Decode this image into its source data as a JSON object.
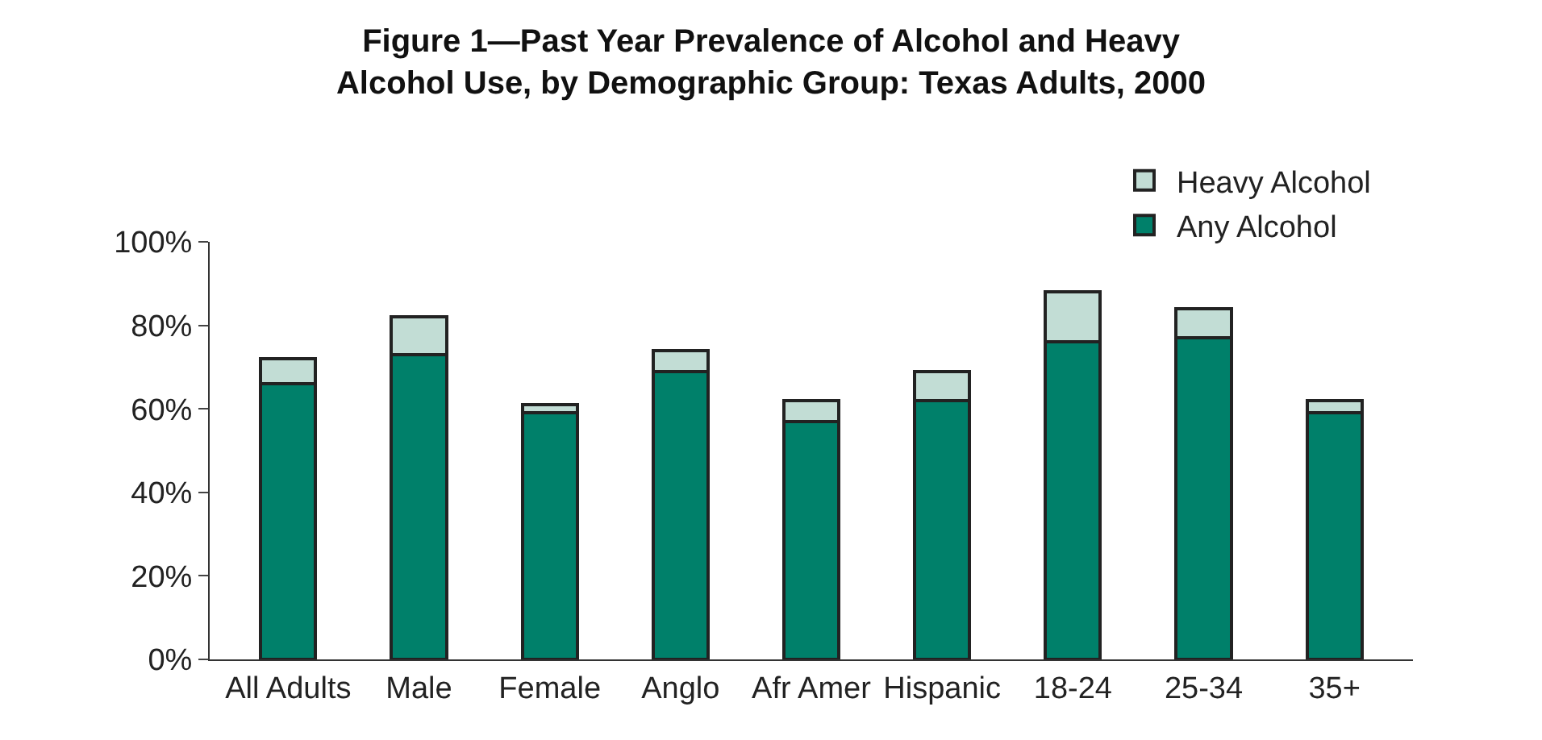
{
  "chart_data": {
    "type": "bar",
    "title": "Figure 1—Past Year Prevalence of Alcohol and Heavy\nAlcohol Use, by Demographic Group: Texas Adults, 2000",
    "categories": [
      "All Adults",
      "Male",
      "Female",
      "Anglo",
      "Afr Amer",
      "Hispanic",
      "18-24",
      "25-34",
      "35+"
    ],
    "series": [
      {
        "name": "Any Alcohol",
        "color": "#00806a",
        "values": [
          66,
          73,
          59,
          69,
          57,
          62,
          76,
          77,
          59
        ]
      },
      {
        "name": "Heavy Alcohol",
        "color": "#c2ddd5",
        "values": [
          6,
          9,
          2,
          5,
          5,
          7,
          12,
          7,
          3
        ]
      }
    ],
    "stacked": true,
    "ylim": [
      0,
      100
    ],
    "yticks": [
      {
        "value": 0,
        "label": "0%"
      },
      {
        "value": 20,
        "label": "20%"
      },
      {
        "value": 40,
        "label": "40%"
      },
      {
        "value": 60,
        "label": "60%"
      },
      {
        "value": 80,
        "label": "80%"
      },
      {
        "value": 100,
        "label": "100%"
      }
    ],
    "legend": "top right"
  }
}
